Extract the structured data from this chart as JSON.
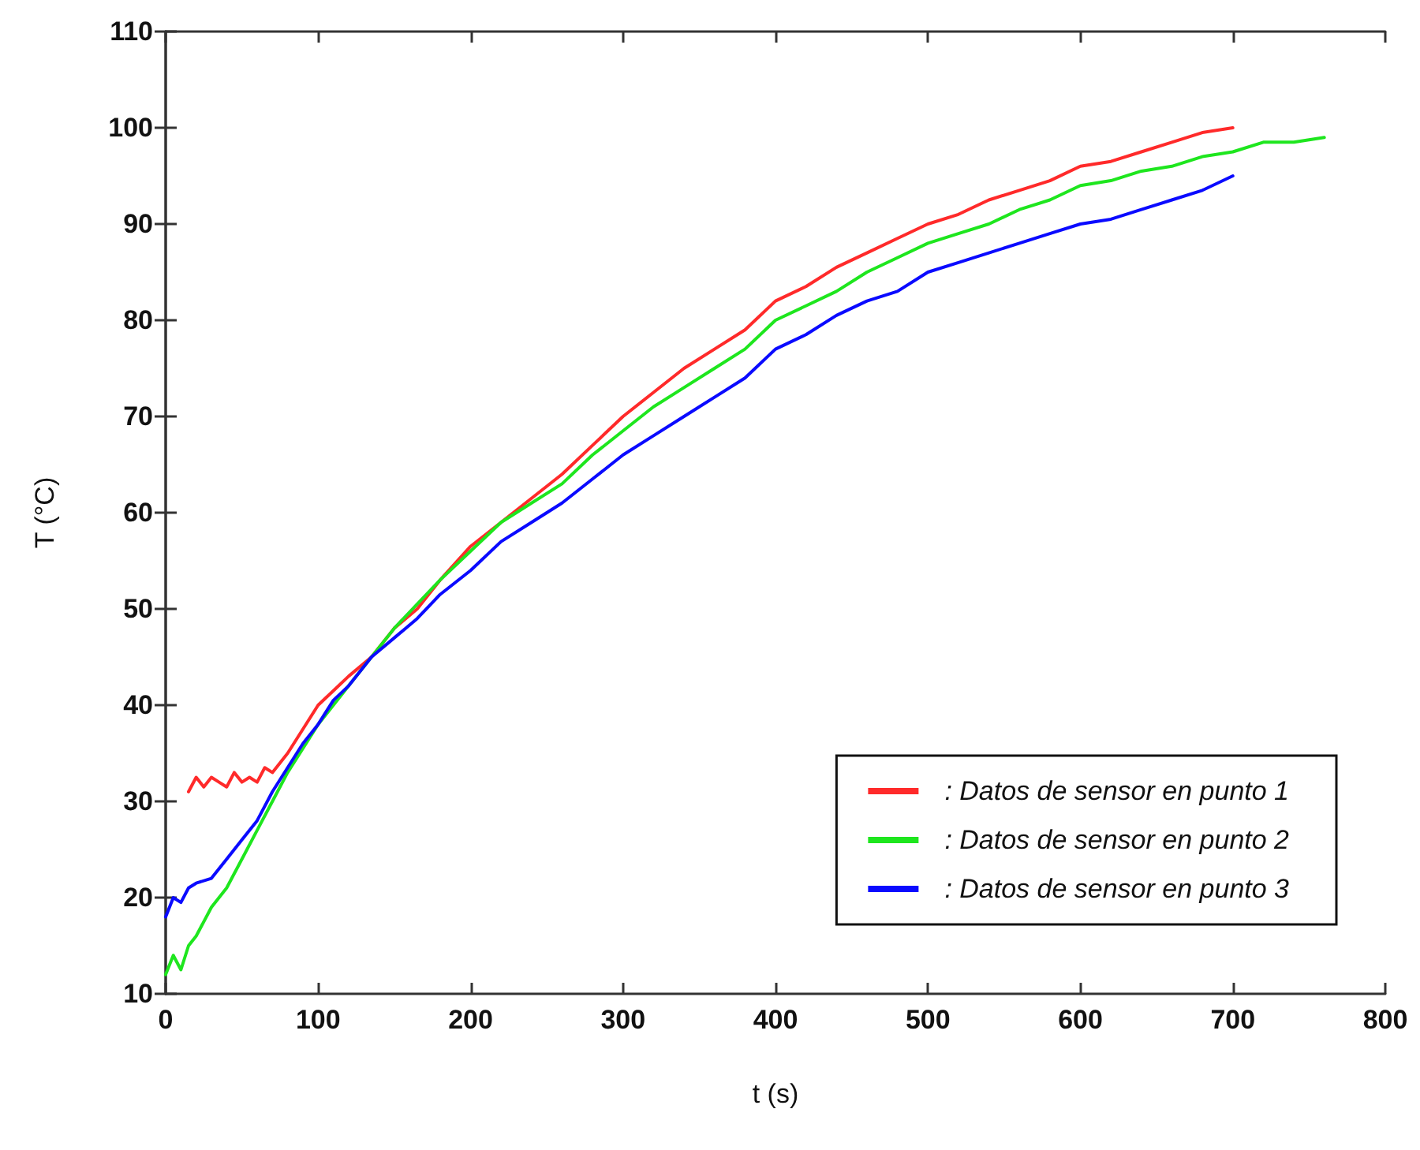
{
  "chart_data": {
    "type": "line",
    "xlabel": "t (s)",
    "ylabel": "T (°C)",
    "xlim": [
      0,
      800
    ],
    "xticks": [
      0,
      100,
      200,
      300,
      400,
      500,
      600,
      700,
      800
    ],
    "ylim": [
      10,
      110
    ],
    "yticks": [
      10,
      20,
      30,
      40,
      50,
      60,
      70,
      80,
      90,
      100,
      110
    ],
    "grid": false,
    "legend": "bottom right",
    "marker": "none",
    "line_style": "solid",
    "series": [
      {
        "name": ": Datos de sensor en punto 1",
        "color": "#ff2a2a",
        "x": [
          15,
          20,
          25,
          30,
          35,
          40,
          45,
          50,
          55,
          60,
          65,
          70,
          75,
          80,
          90,
          100,
          110,
          120,
          135,
          150,
          165,
          180,
          200,
          220,
          240,
          260,
          280,
          300,
          320,
          340,
          360,
          380,
          400,
          420,
          440,
          460,
          480,
          500,
          520,
          540,
          560,
          580,
          600,
          620,
          640,
          660,
          680,
          700
        ],
        "values": [
          31,
          32.5,
          31.5,
          32.5,
          32,
          31.5,
          33,
          32,
          32.5,
          32,
          33.5,
          33,
          34,
          35,
          37.5,
          40,
          41.5,
          43,
          45,
          48,
          50,
          53,
          56.5,
          59,
          61.5,
          64,
          67,
          70,
          72.5,
          75,
          77,
          79,
          82,
          83.5,
          85.5,
          87,
          88.5,
          90,
          91,
          92.5,
          93.5,
          94.5,
          96,
          96.5,
          97.5,
          98.5,
          99.5,
          100
        ]
      },
      {
        "name": ": Datos de sensor en punto 2",
        "color": "#1ee61e",
        "x": [
          0,
          5,
          10,
          15,
          20,
          30,
          40,
          50,
          60,
          70,
          80,
          90,
          100,
          110,
          120,
          135,
          150,
          165,
          180,
          200,
          220,
          240,
          260,
          280,
          300,
          320,
          340,
          360,
          380,
          400,
          420,
          440,
          460,
          480,
          500,
          520,
          540,
          560,
          580,
          600,
          620,
          640,
          660,
          680,
          700,
          720,
          740,
          760
        ],
        "values": [
          12,
          14,
          12.5,
          15,
          16,
          19,
          21,
          24,
          27,
          30,
          33,
          35.5,
          38,
          40,
          42,
          45,
          48,
          50.5,
          53,
          56,
          59,
          61,
          63,
          66,
          68.5,
          71,
          73,
          75,
          77,
          80,
          81.5,
          83,
          85,
          86.5,
          88,
          89,
          90,
          91.5,
          92.5,
          94,
          94.5,
          95.5,
          96,
          97,
          97.5,
          98.5,
          98.5,
          99
        ]
      },
      {
        "name": ": Datos de sensor en punto 3",
        "color": "#0a0aff",
        "x": [
          0,
          5,
          10,
          15,
          20,
          30,
          40,
          50,
          60,
          70,
          80,
          90,
          100,
          110,
          120,
          135,
          150,
          165,
          180,
          200,
          220,
          240,
          260,
          280,
          300,
          320,
          340,
          360,
          380,
          400,
          420,
          440,
          460,
          480,
          500,
          520,
          540,
          560,
          580,
          600,
          620,
          640,
          660,
          680,
          700
        ],
        "values": [
          18,
          20,
          19.5,
          21,
          21.5,
          22,
          24,
          26,
          28,
          31,
          33.5,
          36,
          38,
          40.5,
          42,
          45,
          47,
          49,
          51.5,
          54,
          57,
          59,
          61,
          63.5,
          66,
          68,
          70,
          72,
          74,
          77,
          78.5,
          80.5,
          82,
          83,
          85,
          86,
          87,
          88,
          89,
          90,
          90.5,
          91.5,
          92.5,
          93.5,
          95
        ]
      }
    ]
  }
}
